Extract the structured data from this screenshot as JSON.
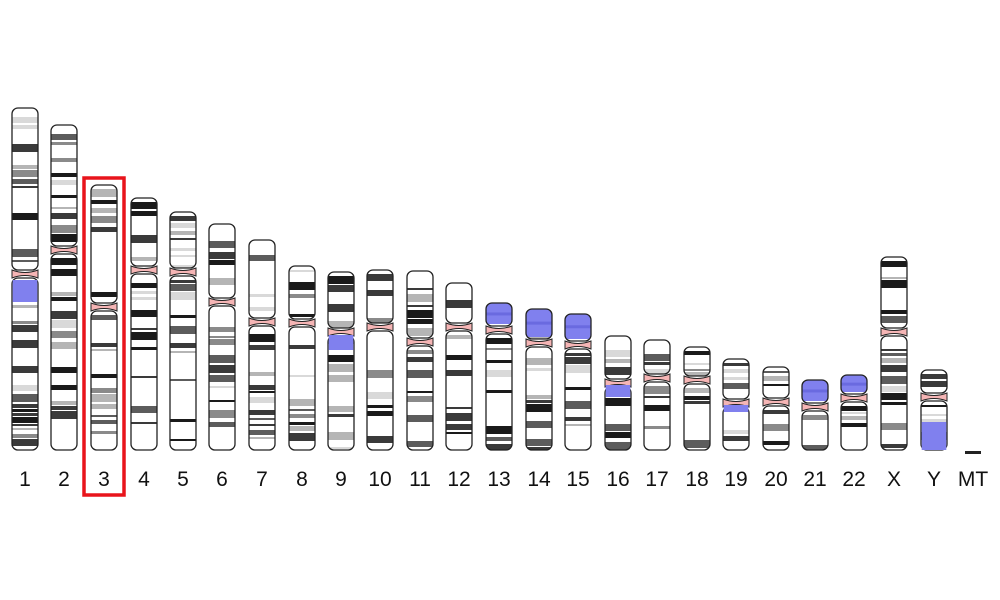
{
  "chromosomes": [
    {
      "label": "1",
      "highlighted": false
    },
    {
      "label": "2",
      "highlighted": false
    },
    {
      "label": "3",
      "highlighted": true
    },
    {
      "label": "4",
      "highlighted": false
    },
    {
      "label": "5",
      "highlighted": false
    },
    {
      "label": "6",
      "highlighted": false
    },
    {
      "label": "7",
      "highlighted": false
    },
    {
      "label": "8",
      "highlighted": false
    },
    {
      "label": "9",
      "highlighted": false
    },
    {
      "label": "10",
      "highlighted": false
    },
    {
      "label": "11",
      "highlighted": false
    },
    {
      "label": "12",
      "highlighted": false
    },
    {
      "label": "13",
      "highlighted": false
    },
    {
      "label": "14",
      "highlighted": false
    },
    {
      "label": "15",
      "highlighted": false
    },
    {
      "label": "16",
      "highlighted": false
    },
    {
      "label": "17",
      "highlighted": false
    },
    {
      "label": "18",
      "highlighted": false
    },
    {
      "label": "19",
      "highlighted": false
    },
    {
      "label": "20",
      "highlighted": false
    },
    {
      "label": "21",
      "highlighted": false
    },
    {
      "label": "22",
      "highlighted": false
    },
    {
      "label": "X",
      "highlighted": false
    },
    {
      "label": "Y",
      "highlighted": false
    },
    {
      "label": "MT",
      "highlighted": false
    }
  ],
  "colors": {
    "outline": "#222222",
    "centromere": "#f5b5b5",
    "heterochromatin": "#8080ee",
    "highlight_box": "#e8141b",
    "label": "#111111"
  }
}
